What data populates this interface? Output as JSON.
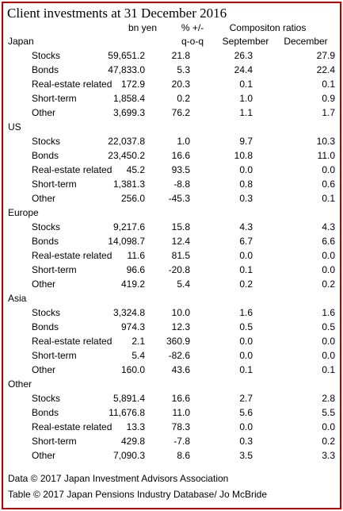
{
  "title": "Client investments at 31 December 2016",
  "header": {
    "amount": "bn yen",
    "change": "% +/-",
    "change_basis": "q-o-q",
    "ratios": "Compositon ratios",
    "september": "September",
    "december": "December"
  },
  "regions": [
    {
      "name": "Japan",
      "rows": [
        [
          "Stocks",
          "59,651.2",
          "21.8",
          "26.3",
          "27.9"
        ],
        [
          "Bonds",
          "47,833.0",
          "5.3",
          "24.4",
          "22.4"
        ],
        [
          "Real-estate related",
          "172.9",
          "20.3",
          "0.1",
          "0.1"
        ],
        [
          "Short-term",
          "1,858.4",
          "0.2",
          "1.0",
          "0.9"
        ],
        [
          "Other",
          "3,699.3",
          "76.2",
          "1.1",
          "1.7"
        ]
      ]
    },
    {
      "name": "US",
      "rows": [
        [
          "Stocks",
          "22,037.8",
          "1.0",
          "9.7",
          "10.3"
        ],
        [
          "Bonds",
          "23,450.2",
          "16.6",
          "10.8",
          "11.0"
        ],
        [
          "Real-estate related",
          "45.2",
          "93.5",
          "0.0",
          "0.0"
        ],
        [
          "Short-term",
          "1,381.3",
          "-8.8",
          "0.8",
          "0.6"
        ],
        [
          "Other",
          "256.0",
          "-45.3",
          "0.3",
          "0.1"
        ]
      ]
    },
    {
      "name": "Europe",
      "rows": [
        [
          "Stocks",
          "9,217.6",
          "15.8",
          "4.3",
          "4.3"
        ],
        [
          "Bonds",
          "14,098.7",
          "12.4",
          "6.7",
          "6.6"
        ],
        [
          "Real-estate related",
          "11.6",
          "81.5",
          "0.0",
          "0.0"
        ],
        [
          "Short-term",
          "96.6",
          "-20.8",
          "0.1",
          "0.0"
        ],
        [
          "Other",
          "419.2",
          "5.4",
          "0.2",
          "0.2"
        ]
      ]
    },
    {
      "name": "Asia",
      "rows": [
        [
          "Stocks",
          "3,324.8",
          "10.0",
          "1.6",
          "1.6"
        ],
        [
          "Bonds",
          "974.3",
          "12.3",
          "0.5",
          "0.5"
        ],
        [
          "Real-estate related",
          "2.1",
          "360.9",
          "0.0",
          "0.0"
        ],
        [
          "Short-term",
          "5.4",
          "-82.6",
          "0.0",
          "0.0"
        ],
        [
          "Other",
          "160.0",
          "43.6",
          "0.1",
          "0.1"
        ]
      ]
    },
    {
      "name": "Other",
      "rows": [
        [
          "Stocks",
          "5,891.4",
          "16.6",
          "2.7",
          "2.8"
        ],
        [
          "Bonds",
          "11,676.8",
          "11.0",
          "5.6",
          "5.5"
        ],
        [
          "Real-estate related",
          "13.3",
          "78.3",
          "0.0",
          "0.0"
        ],
        [
          "Short-term",
          "429.8",
          "-7.8",
          "0.3",
          "0.2"
        ],
        [
          "Other",
          "7,090.3",
          "8.6",
          "3.5",
          "3.3"
        ]
      ]
    }
  ],
  "footnotes": [
    "Data © 2017 Japan Investment Advisors Association",
    "Table © 2017 Japan Pensions Industry Database/ Jo McBride"
  ]
}
